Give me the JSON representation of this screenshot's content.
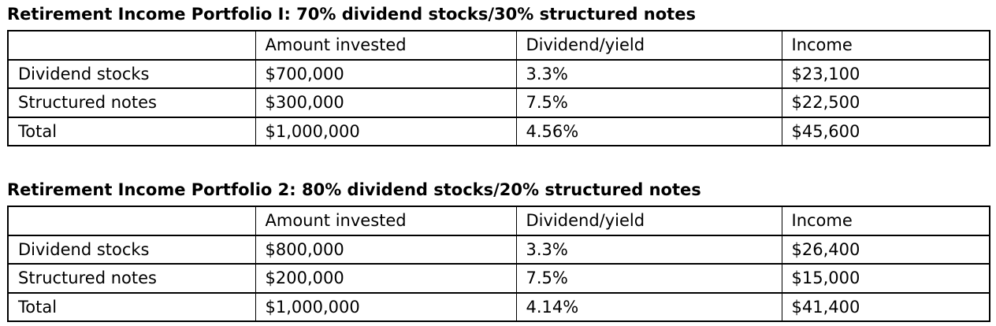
{
  "colors": {
    "text": "#000000",
    "border": "#000000",
    "background": "#ffffff"
  },
  "tables": [
    {
      "title": "Retirement Income Portfolio I: 70% dividend stocks/30% structured notes",
      "headers": [
        "",
        "Amount invested",
        "Dividend/yield",
        "Income"
      ],
      "rows": [
        [
          "Dividend stocks",
          "$700,000",
          "3.3%",
          "$23,100"
        ],
        [
          "Structured notes",
          "$300,000",
          "7.5%",
          "$22,500"
        ],
        [
          "Total",
          "$1,000,000",
          "4.56%",
          "$45,600"
        ]
      ]
    },
    {
      "title": "Retirement Income Portfolio 2: 80% dividend stocks/20% structured notes",
      "headers": [
        "",
        "Amount invested",
        "Dividend/yield",
        "Income"
      ],
      "rows": [
        [
          "Dividend stocks",
          "$800,000",
          "3.3%",
          "$26,400"
        ],
        [
          "Structured notes",
          "$200,000",
          "7.5%",
          "$15,000"
        ],
        [
          "Total",
          "$1,000,000",
          "4.14%",
          "$41,400"
        ]
      ]
    }
  ]
}
